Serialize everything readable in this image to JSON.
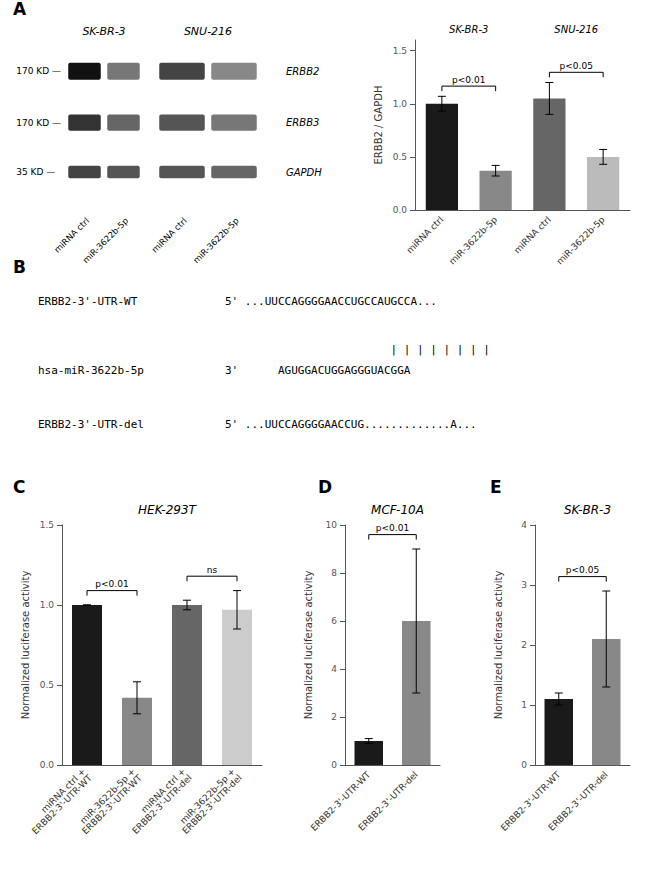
{
  "chart_data": [
    {
      "type": "blot",
      "annotations": [
        "A"
      ],
      "groups": [
        {
          "name": "SK-BR-3",
          "categories": [
            0,
            1
          ]
        },
        {
          "name": "SNU-216",
          "categories": [
            2,
            3
          ]
        }
      ],
      "categories": [
        "miRNA ctrl",
        "miR-3622b-5p",
        "miRNA ctrl",
        "miR-3622b-5p"
      ],
      "row_labels": [
        "ERBB2",
        "ERBB3",
        "GAPDH"
      ],
      "size_labels": [
        "170 KD —",
        "170 KD —",
        "35 KD —"
      ]
    },
    {
      "type": "bar",
      "ylabel": "ERBB2 / GAPDH",
      "categories": [
        "miRNA ctrl",
        "miR-3622b-5p",
        "miRNA ctrl",
        "miR-3622b-5p"
      ],
      "values": [
        1.0,
        0.37,
        1.05,
        0.5
      ],
      "errors": [
        0.07,
        0.05,
        0.15,
        0.07
      ],
      "colors": [
        "#1a1a1a",
        "#888888",
        "#666666",
        "#bbbbbb"
      ],
      "ylim": [
        0,
        1.6
      ],
      "yticks": [
        {
          "value": 0,
          "label": "0.0"
        },
        0.5,
        {
          "value": 1,
          "label": "1.0"
        },
        1.5
      ],
      "grid": false,
      "groups": [
        {
          "name": "SK-BR-3",
          "categories": [
            0,
            1
          ]
        },
        {
          "name": "SNU-216",
          "categories": [
            2,
            3
          ]
        }
      ],
      "significance": [
        {
          "label": "p<0.01",
          "categories": [
            0,
            1
          ]
        },
        {
          "label": "p<0.05",
          "categories": [
            2,
            3
          ]
        }
      ]
    },
    {
      "type": "alignment",
      "annotations": [
        "B"
      ],
      "lines": [
        {
          "label": "ERBB2-3'-UTR-WT",
          "text": "5' ...UUCCAGGGGAACCUGCCAUGCCA..."
        },
        {
          "text": "| | | | | | | |"
        },
        {
          "label": "hsa-miR-3622b-5p",
          "text": "3'      AGUGGACUGGAGGGUACGGA"
        },
        {
          "label": "ERBB2-3'-UTR-del",
          "text": "5' ...UUCCAGGGGAACCUG.............A..."
        }
      ]
    },
    {
      "type": "bar",
      "title": "HEK-293T",
      "annotations": [
        "C"
      ],
      "ylabel": "Normalized luciferase activity",
      "categories": [
        "miRNA ctrl +\nERBB2-3'-UTR-WT",
        "miR-3622b-5p +\nERBB2-3'-UTR-WT",
        "miRNA ctrl +\nERBB2-3'-UTR-del",
        "miR-3622b-5p +\nERBB2-3'-UTR-del"
      ],
      "values": [
        1.0,
        0.42,
        1.0,
        0.97
      ],
      "errors": [
        0.0,
        0.1,
        0.03,
        0.12
      ],
      "colors": [
        "#1a1a1a",
        "#888888",
        "#666666",
        "#cccccc"
      ],
      "ylim": [
        0,
        1.5
      ],
      "yticks": [
        {
          "value": 0,
          "label": "0.0"
        },
        0.5,
        {
          "value": 1,
          "label": "1.0"
        },
        1.5
      ],
      "grid": false,
      "significance": [
        {
          "label": "p<0.01",
          "categories": [
            0,
            1
          ]
        },
        {
          "label": "ns",
          "categories": [
            2,
            3
          ]
        }
      ]
    },
    {
      "type": "bar",
      "title": "MCF-10A",
      "annotations": [
        "D"
      ],
      "ylabel": "Normalized luciferase activity",
      "categories": [
        "ERBB2-3'-UTR-WT",
        "ERBB2-3'-UTR-del"
      ],
      "values": [
        1.0,
        6.0
      ],
      "errors": [
        0.1,
        3.0
      ],
      "colors": [
        "#1a1a1a",
        "#888888"
      ],
      "ylim": [
        0,
        10
      ],
      "yticks": [
        0,
        2,
        4,
        6,
        8,
        10
      ],
      "grid": false,
      "significance": [
        {
          "label": "p<0.01",
          "categories": [
            0,
            1
          ]
        }
      ]
    },
    {
      "type": "bar",
      "title": "SK-BR-3",
      "annotations": [
        "E"
      ],
      "ylabel": "Normalized luciferase activity",
      "categories": [
        "ERBB2-3'-UTR-WT",
        "ERBB2-3'-UTR-del"
      ],
      "values": [
        1.1,
        2.1
      ],
      "errors": [
        0.1,
        0.8
      ],
      "colors": [
        "#1a1a1a",
        "#888888"
      ],
      "ylim": [
        0,
        4
      ],
      "yticks": [
        0,
        1,
        2,
        3,
        4
      ],
      "grid": false,
      "significance": [
        {
          "label": "p<0.05",
          "categories": [
            0,
            1
          ]
        }
      ]
    }
  ]
}
